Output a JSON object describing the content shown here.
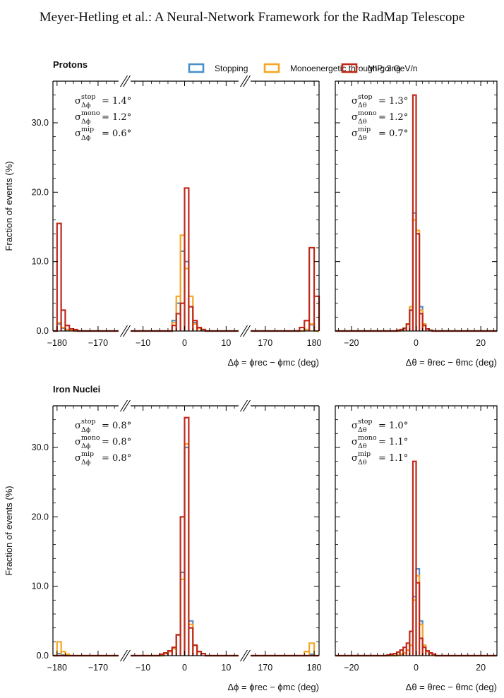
{
  "header": {
    "title": "Meyer-Hetling et al.: A Neural-Network Framework for the RadMap Telescope"
  },
  "legend": {
    "items": [
      {
        "key": "stop",
        "label": "Stopping",
        "color": "#4a90c8"
      },
      {
        "key": "mono",
        "label": "Monoenergetic through-going",
        "color": "#f5a623"
      },
      {
        "key": "mip",
        "label": "MIP, 3 GeV/n",
        "color": "#c0281a"
      }
    ]
  },
  "axes_text": {
    "ylabel": "Fraction of events (%)",
    "phi_label": "Δϕ = ϕrec − ϕmc (deg)",
    "theta_label": "Δθ = θrec − θmc (deg)",
    "y_ticks": [
      "0.0",
      "10.0",
      "20.0",
      "30.0"
    ],
    "phi_ticks_left": [
      "−180",
      "−170"
    ],
    "phi_ticks_mid": [
      "−10",
      "0",
      "10"
    ],
    "phi_ticks_right": [
      "170",
      "180"
    ],
    "theta_ticks": [
      "−20",
      "0",
      "20"
    ]
  },
  "chart_data": [
    {
      "type": "bar",
      "title": "Protons",
      "variable": "Δϕ",
      "xlabel": "Δϕ = ϕrec − ϕmc (deg)",
      "ylabel": "Fraction of events (%)",
      "ylim": [
        0,
        36
      ],
      "broken_axis_segments": [
        [
          -180,
          -165
        ],
        [
          -13,
          13
        ],
        [
          167,
          181
        ]
      ],
      "annotations": [
        "σ stop Δϕ = 1.4°",
        "σ mono Δϕ = 1.2°",
        "σ mip Δϕ = 0.6°"
      ],
      "series": [
        {
          "key": "stop",
          "bins": [
            [
              -181,
              -180,
              0.0
            ],
            [
              -180,
              -179,
              1.0
            ],
            [
              -179,
              -178,
              0.4
            ],
            [
              -178,
              -177,
              0.2
            ],
            [
              -177,
              -176,
              0.1
            ],
            [
              -3,
              -2,
              1.5
            ],
            [
              -2,
              -1,
              4.0
            ],
            [
              -1,
              0,
              11.5
            ],
            [
              0,
              1,
              10.0
            ],
            [
              1,
              2,
              3.5
            ],
            [
              2,
              3,
              1.2
            ],
            [
              3,
              4,
              0.5
            ],
            [
              4,
              5,
              0.2
            ],
            [
              178,
              179,
              0.2
            ],
            [
              179,
              180,
              0.9
            ],
            [
              180,
              181,
              0.0
            ]
          ]
        },
        {
          "key": "mono",
          "bins": [
            [
              -181,
              -180,
              0.0
            ],
            [
              -180,
              -179,
              1.2
            ],
            [
              -179,
              -178,
              0.5
            ],
            [
              -178,
              -177,
              0.2
            ],
            [
              -177,
              -176,
              0.1
            ],
            [
              -3,
              -2,
              1.2
            ],
            [
              -2,
              -1,
              5.0
            ],
            [
              -1,
              0,
              13.8
            ],
            [
              0,
              1,
              9.0
            ],
            [
              1,
              2,
              5.0
            ],
            [
              2,
              3,
              1.0
            ],
            [
              3,
              4,
              0.4
            ],
            [
              4,
              5,
              0.2
            ],
            [
              178,
              179,
              0.2
            ],
            [
              179,
              180,
              1.0
            ],
            [
              180,
              181,
              0.0
            ]
          ]
        },
        {
          "key": "mip",
          "bins": [
            [
              -181,
              -180,
              0.0
            ],
            [
              -180,
              -179,
              15.5
            ],
            [
              -179,
              -178,
              3.0
            ],
            [
              -178,
              -177,
              0.8
            ],
            [
              -177,
              -176,
              0.3
            ],
            [
              -176,
              -175,
              0.2
            ],
            [
              -3,
              -2,
              0.8
            ],
            [
              -2,
              -1,
              2.5
            ],
            [
              -1,
              0,
              4.0
            ],
            [
              0,
              1,
              20.6
            ],
            [
              1,
              2,
              3.5
            ],
            [
              2,
              3,
              1.5
            ],
            [
              3,
              4,
              0.5
            ],
            [
              4,
              5,
              0.2
            ],
            [
              177,
              178,
              0.5
            ],
            [
              178,
              179,
              1.5
            ],
            [
              179,
              180,
              12.0
            ],
            [
              180,
              181,
              5.0
            ]
          ]
        }
      ]
    },
    {
      "type": "bar",
      "title": "",
      "variable": "Δθ",
      "xlabel": "Δθ = θrec − θmc (deg)",
      "ylim": [
        0,
        36
      ],
      "xlim": [
        -25,
        25
      ],
      "annotations": [
        "σ stop Δθ = 1.3°",
        "σ mono Δθ = 1.2°",
        "σ mip Δθ = 0.7°"
      ],
      "series": [
        {
          "key": "stop",
          "bins": [
            [
              -5,
              -4,
              0.1
            ],
            [
              -4,
              -3,
              0.3
            ],
            [
              -3,
              -2,
              1.0
            ],
            [
              -2,
              -1,
              3.5
            ],
            [
              -1,
              0,
              17.0
            ],
            [
              0,
              1,
              14.0
            ],
            [
              1,
              2,
              3.5
            ],
            [
              2,
              3,
              1.0
            ],
            [
              3,
              4,
              0.3
            ],
            [
              4,
              5,
              0.1
            ]
          ]
        },
        {
          "key": "mono",
          "bins": [
            [
              -5,
              -4,
              0.1
            ],
            [
              -4,
              -3,
              0.3
            ],
            [
              -3,
              -2,
              1.0
            ],
            [
              -2,
              -1,
              3.5
            ],
            [
              -1,
              0,
              16.0
            ],
            [
              0,
              1,
              14.5
            ],
            [
              1,
              2,
              3.0
            ],
            [
              2,
              3,
              1.0
            ],
            [
              3,
              4,
              0.3
            ],
            [
              4,
              5,
              0.1
            ]
          ]
        },
        {
          "key": "mip",
          "bins": [
            [
              -6,
              -5,
              0.1
            ],
            [
              -5,
              -4,
              0.2
            ],
            [
              -4,
              -3,
              0.4
            ],
            [
              -3,
              -2,
              1.0
            ],
            [
              -2,
              -1,
              3.0
            ],
            [
              -1,
              0,
              34.0
            ],
            [
              0,
              1,
              14.0
            ],
            [
              1,
              2,
              2.5
            ],
            [
              2,
              3,
              0.8
            ],
            [
              3,
              4,
              0.3
            ],
            [
              4,
              5,
              0.1
            ]
          ]
        }
      ]
    },
    {
      "type": "bar",
      "title": "Iron Nuclei",
      "variable": "Δϕ",
      "xlabel": "Δϕ = ϕrec − ϕmc (deg)",
      "ylabel": "Fraction of events (%)",
      "ylim": [
        0,
        36
      ],
      "broken_axis_segments": [
        [
          -180,
          -165
        ],
        [
          -13,
          13
        ],
        [
          167,
          181
        ]
      ],
      "annotations": [
        "σ stop Δϕ = 0.8°",
        "σ mono Δϕ = 0.8°",
        "σ mip Δϕ = 0.8°"
      ],
      "series": [
        {
          "key": "stop",
          "bins": [
            [
              -180,
              -179,
              0.3
            ],
            [
              -179,
              -178,
              0.1
            ],
            [
              -5,
              -4,
              0.3
            ],
            [
              -4,
              -3,
              0.6
            ],
            [
              -3,
              -2,
              1.0
            ],
            [
              -2,
              -1,
              3.0
            ],
            [
              -1,
              0,
              12.0
            ],
            [
              0,
              1,
              30.0
            ],
            [
              1,
              2,
              5.0
            ],
            [
              2,
              3,
              1.5
            ],
            [
              3,
              4,
              0.6
            ],
            [
              4,
              5,
              0.3
            ],
            [
              179,
              180,
              0.2
            ]
          ]
        },
        {
          "key": "mono",
          "bins": [
            [
              -180,
              -179,
              2.0
            ],
            [
              -179,
              -178,
              0.6
            ],
            [
              -178,
              -177,
              0.2
            ],
            [
              -5,
              -4,
              0.3
            ],
            [
              -4,
              -3,
              0.6
            ],
            [
              -3,
              -2,
              1.0
            ],
            [
              -2,
              -1,
              3.0
            ],
            [
              -1,
              0,
              11.0
            ],
            [
              0,
              1,
              30.5
            ],
            [
              1,
              2,
              4.5
            ],
            [
              2,
              3,
              1.5
            ],
            [
              3,
              4,
              0.6
            ],
            [
              4,
              5,
              0.3
            ],
            [
              178,
              179,
              0.6
            ],
            [
              179,
              180,
              1.8
            ]
          ]
        },
        {
          "key": "mip",
          "bins": [
            [
              -6,
              -5,
              0.2
            ],
            [
              -5,
              -4,
              0.4
            ],
            [
              -4,
              -3,
              0.7
            ],
            [
              -3,
              -2,
              1.2
            ],
            [
              -2,
              -1,
              3.0
            ],
            [
              -1,
              0,
              20.0
            ],
            [
              0,
              1,
              34.3
            ],
            [
              1,
              2,
              4.0
            ],
            [
              2,
              3,
              1.5
            ],
            [
              3,
              4,
              0.6
            ],
            [
              4,
              5,
              0.3
            ]
          ]
        }
      ]
    },
    {
      "type": "bar",
      "title": "",
      "variable": "Δθ",
      "xlabel": "Δθ = θrec − θmc (deg)",
      "ylim": [
        0,
        36
      ],
      "xlim": [
        -25,
        25
      ],
      "annotations": [
        "σ stop Δθ = 1.0°",
        "σ mono Δθ = 1.1°",
        "σ mip Δθ = 1.1°"
      ],
      "series": [
        {
          "key": "stop",
          "bins": [
            [
              -6,
              -5,
              0.1
            ],
            [
              -5,
              -4,
              0.2
            ],
            [
              -4,
              -3,
              0.4
            ],
            [
              -3,
              -2,
              0.8
            ],
            [
              -2,
              -1,
              1.5
            ],
            [
              -1,
              0,
              8.5
            ],
            [
              0,
              1,
              12.5
            ],
            [
              1,
              2,
              5.0
            ],
            [
              2,
              3,
              1.5
            ],
            [
              3,
              4,
              0.6
            ],
            [
              4,
              5,
              0.3
            ],
            [
              5,
              6,
              0.1
            ]
          ]
        },
        {
          "key": "mono",
          "bins": [
            [
              -6,
              -5,
              0.1
            ],
            [
              -5,
              -4,
              0.2
            ],
            [
              -4,
              -3,
              0.4
            ],
            [
              -3,
              -2,
              0.8
            ],
            [
              -2,
              -1,
              1.5
            ],
            [
              -1,
              0,
              8.0
            ],
            [
              0,
              1,
              11.5
            ],
            [
              1,
              2,
              4.5
            ],
            [
              2,
              3,
              1.5
            ],
            [
              3,
              4,
              0.6
            ],
            [
              4,
              5,
              0.3
            ],
            [
              5,
              6,
              0.1
            ]
          ]
        },
        {
          "key": "mip",
          "bins": [
            [
              -9,
              -8,
              0.1
            ],
            [
              -8,
              -7,
              0.2
            ],
            [
              -7,
              -6,
              0.3
            ],
            [
              -6,
              -5,
              0.5
            ],
            [
              -5,
              -4,
              0.8
            ],
            [
              -4,
              -3,
              1.2
            ],
            [
              -3,
              -2,
              1.8
            ],
            [
              -2,
              -1,
              3.5
            ],
            [
              -1,
              0,
              28.0
            ],
            [
              0,
              1,
              10.5
            ],
            [
              1,
              2,
              2.5
            ],
            [
              2,
              3,
              1.2
            ],
            [
              3,
              4,
              0.7
            ],
            [
              4,
              5,
              0.4
            ],
            [
              5,
              6,
              0.2
            ]
          ]
        }
      ]
    }
  ]
}
